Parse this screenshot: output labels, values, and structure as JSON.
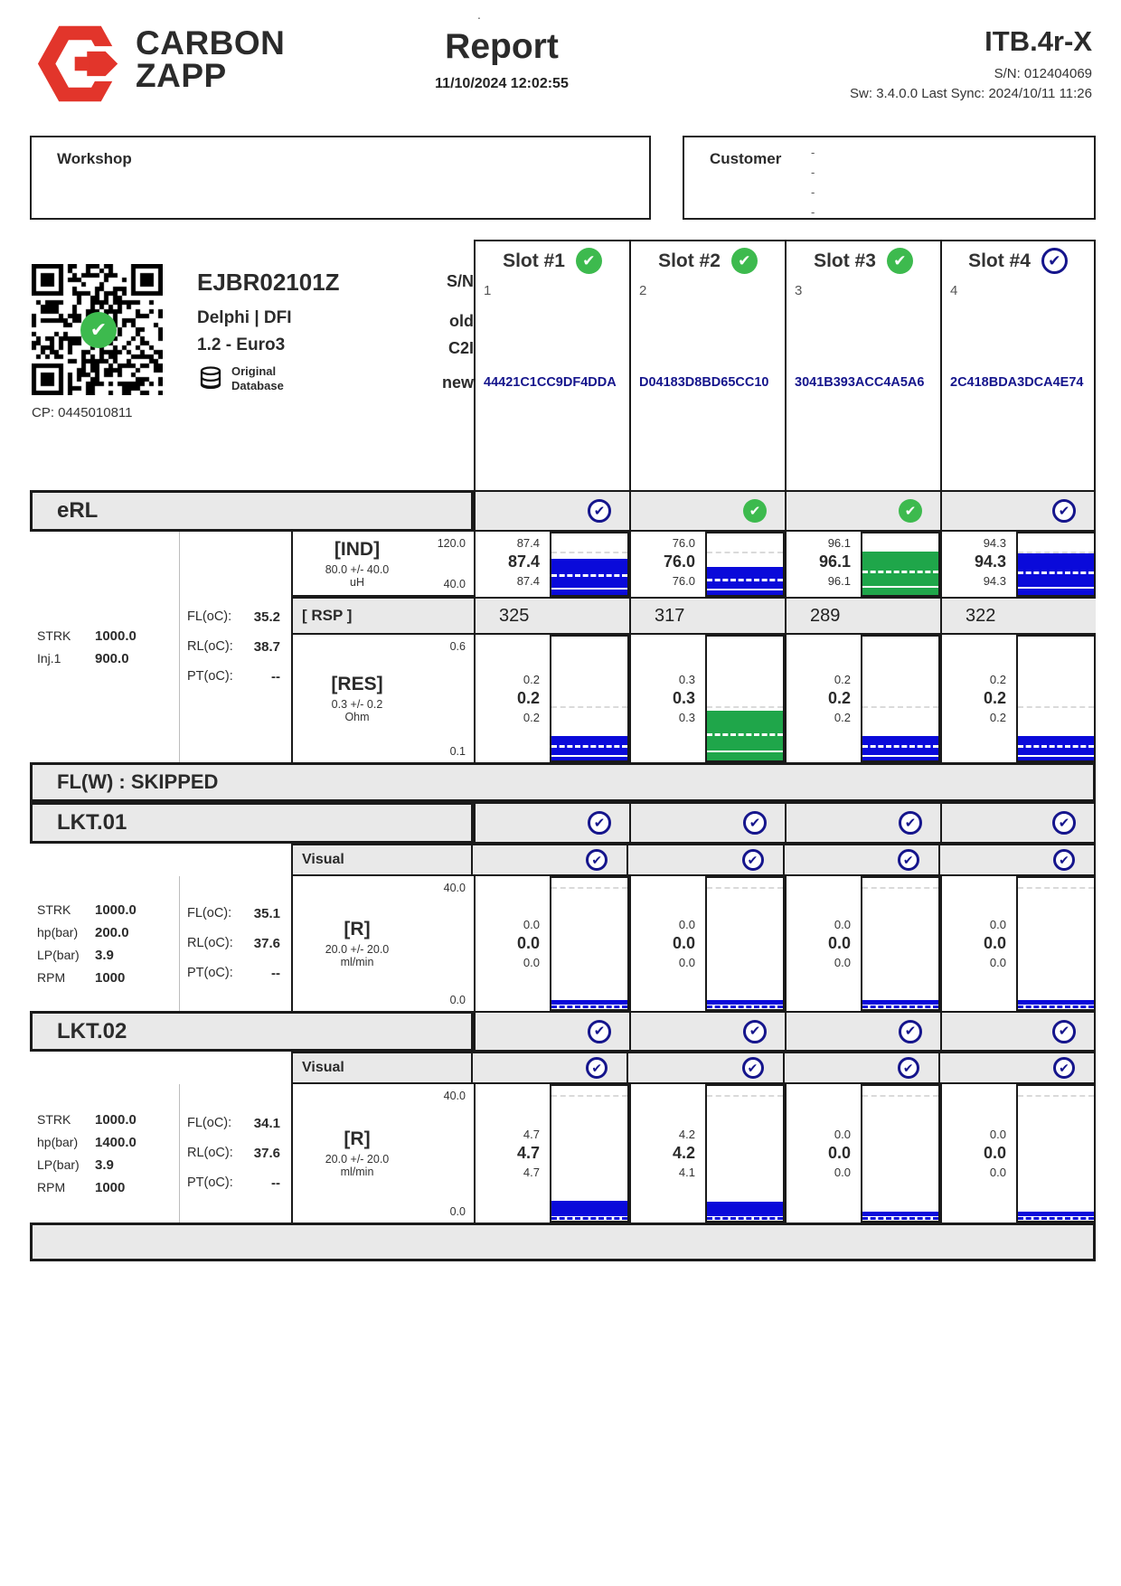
{
  "header": {
    "brand": {
      "line1": "CARBON",
      "line2": "ZAPP"
    },
    "title": "Report",
    "datetime": "11/10/2024 12:02:55",
    "device_model": "ITB.4r-X",
    "device_serial": "S/N: 012404069",
    "sw_info": "Sw: 3.4.0.0 Last Sync: 2024/10/11 11:26",
    "stray_dot": "."
  },
  "workshop": {
    "label": "Workshop"
  },
  "customer": {
    "label": "Customer",
    "dashes": [
      "-",
      "-",
      "-",
      "-"
    ]
  },
  "injector": {
    "part_number": "EJBR02101Z",
    "brand_type": "Delphi | DFI",
    "variant": "1.2 - Euro3",
    "database_badge": {
      "line1": "Original",
      "line2": "Database"
    },
    "cp_number": "CP: 0445010811",
    "side_labels": {
      "sn": "S/N",
      "old": "old",
      "c2i": "C2I",
      "new": "new"
    }
  },
  "slots": [
    {
      "label": "Slot #1",
      "status": "green",
      "number": "1",
      "c2i_code": "44421C1CC9DF4DDA"
    },
    {
      "label": "Slot #2",
      "status": "green",
      "number": "2",
      "c2i_code": "D04183D8BD65CC10"
    },
    {
      "label": "Slot #3",
      "status": "green",
      "number": "3",
      "c2i_code": "3041B393ACC4A5A6"
    },
    {
      "label": "Slot #4",
      "status": "blue",
      "number": "4",
      "c2i_code": "2C418BDA3DCA4E74"
    }
  ],
  "sections": {
    "erl": {
      "title": "eRL",
      "checks": [
        "blue",
        "green",
        "green",
        "blue"
      ],
      "params": [
        {
          "k": "STRK",
          "v": "1000.0"
        },
        {
          "k": "Inj.1",
          "v": "900.0"
        }
      ],
      "temps": [
        {
          "k": "FL(oC):",
          "v": "35.2"
        },
        {
          "k": "RL(oC):",
          "v": "38.7"
        },
        {
          "k": "PT(oC):",
          "v": "--"
        }
      ],
      "ind": {
        "label": "[IND]",
        "tolerance": "80.0 +/- 40.0",
        "unit": "uH",
        "scale_top": "120.0",
        "scale_bottom": "40.0"
      },
      "rsp": {
        "label": "[ RSP ]"
      },
      "res": {
        "label": "[RES]",
        "tolerance": "0.3 +/- 0.2",
        "unit": "Ohm",
        "scale_top": "0.6",
        "scale_bottom": "0.1"
      }
    },
    "flw": {
      "title": "FL(W) : SKIPPED"
    },
    "lkt01": {
      "title": "LKT.01",
      "checks": [
        "blue",
        "blue",
        "blue",
        "blue"
      ],
      "visual": {
        "label": "Visual",
        "checks": [
          "blue",
          "blue",
          "blue",
          "blue"
        ]
      },
      "params": [
        {
          "k": "STRK",
          "v": "1000.0"
        },
        {
          "k": "hp(bar)",
          "v": "200.0"
        },
        {
          "k": "LP(bar)",
          "v": "3.9"
        },
        {
          "k": "RPM",
          "v": "1000"
        }
      ],
      "temps": [
        {
          "k": "FL(oC):",
          "v": "35.1"
        },
        {
          "k": "RL(oC):",
          "v": "37.6"
        },
        {
          "k": "PT(oC):",
          "v": "--"
        }
      ],
      "r": {
        "label": "[R]",
        "tolerance": "20.0 +/- 20.0",
        "unit": "ml/min",
        "scale_top": "40.0",
        "scale_bottom": "0.0"
      }
    },
    "lkt02": {
      "title": "LKT.02",
      "checks": [
        "blue",
        "blue",
        "blue",
        "blue"
      ],
      "visual": {
        "label": "Visual",
        "checks": [
          "blue",
          "blue",
          "blue",
          "blue"
        ]
      },
      "params": [
        {
          "k": "STRK",
          "v": "1000.0"
        },
        {
          "k": "hp(bar)",
          "v": "1400.0"
        },
        {
          "k": "LP(bar)",
          "v": "3.9"
        },
        {
          "k": "RPM",
          "v": "1000"
        }
      ],
      "temps": [
        {
          "k": "FL(oC):",
          "v": "34.1"
        },
        {
          "k": "RL(oC):",
          "v": "37.6"
        },
        {
          "k": "PT(oC):",
          "v": "--"
        }
      ],
      "r": {
        "label": "[R]",
        "tolerance": "20.0 +/- 20.0",
        "unit": "ml/min",
        "scale_top": "40.0",
        "scale_bottom": "0.0"
      }
    }
  },
  "readings": {
    "erl_ind": {
      "style": "erl",
      "scale": [
        40,
        120
      ],
      "nominal": 80,
      "guide": 0.68,
      "slots": [
        {
          "max": "87.4",
          "avg": "87.4",
          "min": "87.4",
          "color": "blue"
        },
        {
          "max": "76.0",
          "avg": "76.0",
          "min": "76.0",
          "color": "blue"
        },
        {
          "max": "96.1",
          "avg": "96.1",
          "min": "96.1",
          "color": "green"
        },
        {
          "max": "94.3",
          "avg": "94.3",
          "min": "94.3",
          "color": "blue"
        }
      ]
    },
    "erl_rsp": {
      "values": [
        "325",
        "317",
        "289",
        "322"
      ]
    },
    "erl_res": {
      "style": "erl",
      "scale": [
        0.1,
        0.6
      ],
      "nominal": 0.3,
      "guide": 0.42,
      "slots": [
        {
          "max": "0.2",
          "avg": "0.2",
          "min": "0.2",
          "color": "blue"
        },
        {
          "max": "0.3",
          "avg": "0.3",
          "min": "0.3",
          "color": "green"
        },
        {
          "max": "0.2",
          "avg": "0.2",
          "min": "0.2",
          "color": "blue"
        },
        {
          "max": "0.2",
          "avg": "0.2",
          "min": "0.2",
          "color": "blue"
        }
      ]
    },
    "lkt01_r": {
      "style": "lkt",
      "scale": [
        0,
        40
      ],
      "nominal": 20,
      "guide": 0.92,
      "slots": [
        {
          "max": "0.0",
          "avg": "0.0",
          "min": "0.0",
          "color": "blue"
        },
        {
          "max": "0.0",
          "avg": "0.0",
          "min": "0.0",
          "color": "blue"
        },
        {
          "max": "0.0",
          "avg": "0.0",
          "min": "0.0",
          "color": "blue"
        },
        {
          "max": "0.0",
          "avg": "0.0",
          "min": "0.0",
          "color": "blue"
        }
      ]
    },
    "lkt02_r": {
      "style": "lkt",
      "scale": [
        0,
        40
      ],
      "nominal": 20,
      "guide": 0.92,
      "slots": [
        {
          "max": "4.7",
          "avg": "4.7",
          "min": "4.7",
          "color": "blue"
        },
        {
          "max": "4.2",
          "avg": "4.2",
          "min": "4.1",
          "color": "blue"
        },
        {
          "max": "0.0",
          "avg": "0.0",
          "min": "0.0",
          "color": "blue"
        },
        {
          "max": "0.0",
          "avg": "0.0",
          "min": "0.0",
          "color": "blue"
        }
      ]
    }
  },
  "colors": {
    "brand_red": "#e2352b",
    "navy": "#15158c",
    "bar_blue": "#0a0ada",
    "bar_green": "#1fa64a",
    "check_green": "#3dba4e",
    "header_gray": "#e9e9e9"
  }
}
